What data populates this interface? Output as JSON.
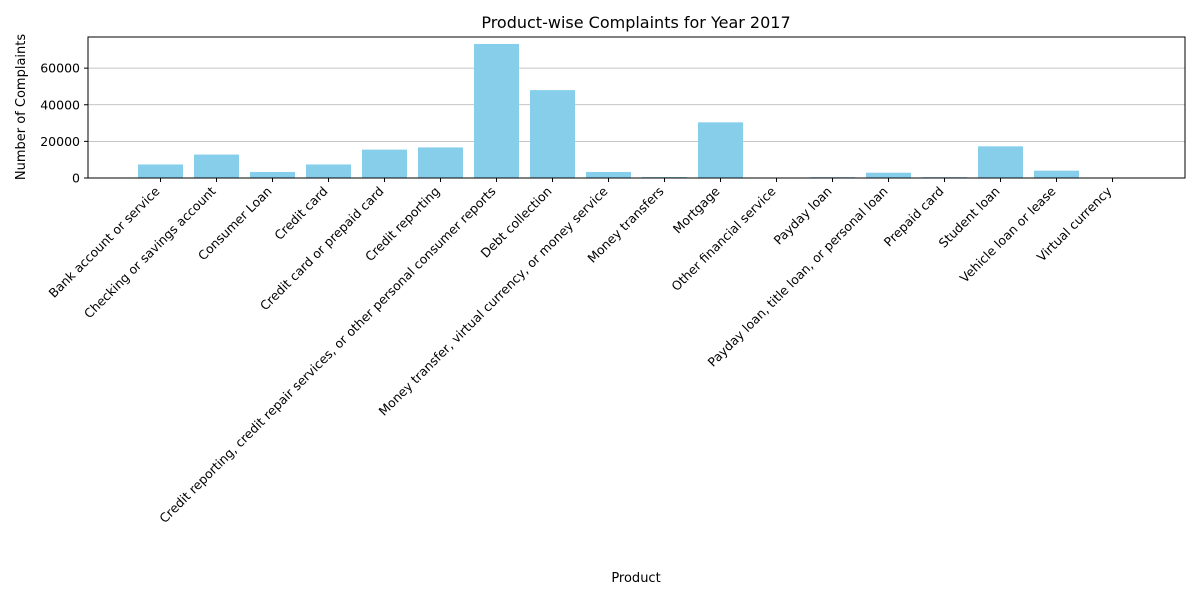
{
  "chart_data": {
    "type": "bar",
    "title": "Product-wise Complaints for Year 2017",
    "xlabel": "Product",
    "ylabel": "Number of Complaints",
    "categories": [
      "Bank account or service",
      "Checking or savings account",
      "Consumer Loan",
      "Credit card",
      "Credit card or prepaid card",
      "Credit reporting",
      "Credit reporting, credit repair services, or other personal consumer reports",
      "Debt collection",
      "Money transfer, virtual currency, or money service",
      "Money transfers",
      "Mortgage",
      "Other financial service",
      "Payday loan",
      "Payday loan, title loan, or personal loan",
      "Prepaid card",
      "Student loan",
      "Vehicle loan or lease",
      "Virtual currency"
    ],
    "values": [
      7400,
      12800,
      3300,
      7400,
      15500,
      16700,
      73200,
      48000,
      3300,
      500,
      30400,
      150,
      450,
      2900,
      450,
      17300,
      4000,
      20
    ],
    "yticks": [
      "0",
      "20000",
      "40000",
      "60000"
    ],
    "ylim": [
      0,
      77000
    ],
    "grid": "y",
    "bar_color": "#87ceeb"
  }
}
